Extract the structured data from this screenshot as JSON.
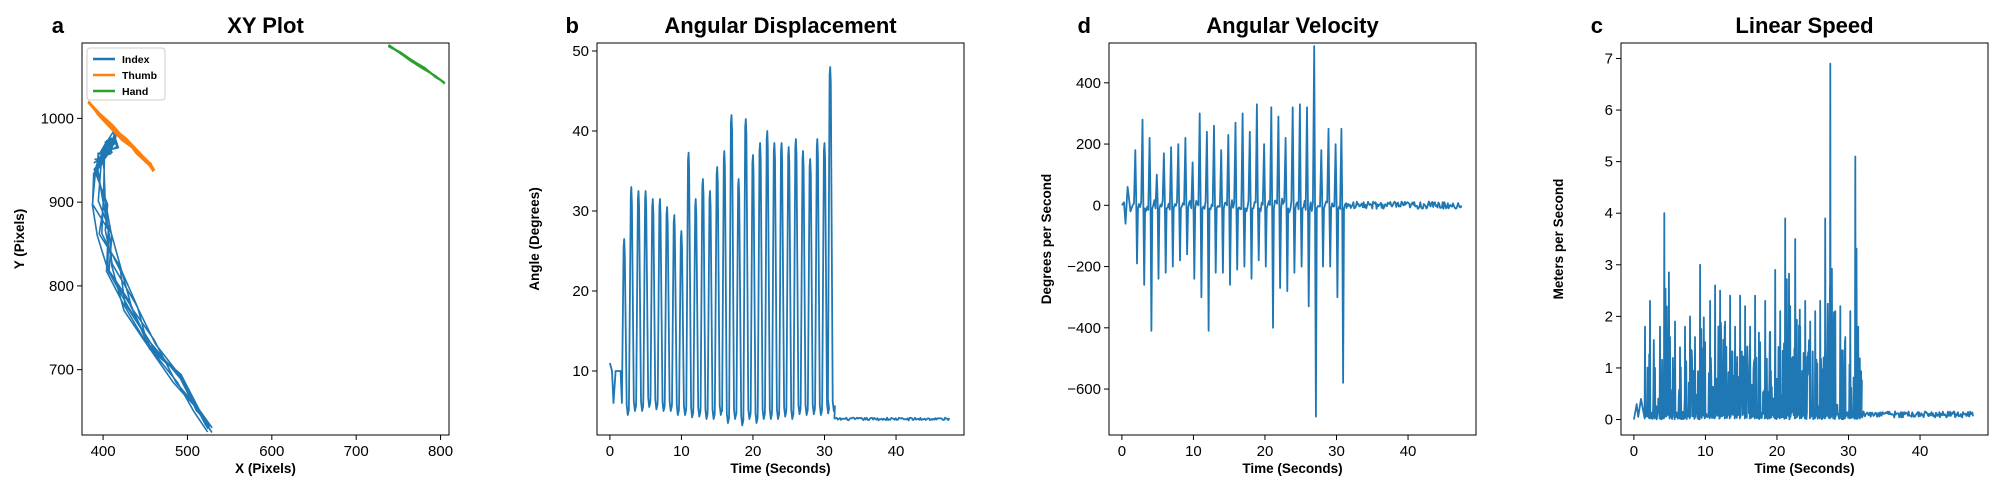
{
  "chart_data": [
    {
      "letter": "a",
      "type": "line",
      "title": "XY Plot",
      "xlabel": "X (Pixels)",
      "ylabel": "Y (Pixels)",
      "xlim": [
        375,
        810
      ],
      "ylim": [
        622,
        1090
      ],
      "xticks": [
        400,
        500,
        600,
        700,
        800
      ],
      "yticks": [
        700,
        800,
        900,
        1000
      ],
      "legend_position": "upper-left",
      "legend": [
        {
          "name": "Index",
          "color": "#1f77b4"
        },
        {
          "name": "Thumb",
          "color": "#ff7f0e"
        },
        {
          "name": "Hand",
          "color": "#2ca02c"
        }
      ],
      "series": [
        {
          "name": "Index",
          "color": "#1f77b4",
          "style": "bundle",
          "x": [
            392,
            398,
            404,
            410,
            408,
            402,
            398,
            398,
            402,
            412,
            432,
            458,
            488,
            512,
            526
          ],
          "y": [
            946,
            952,
            960,
            970,
            978,
            962,
            940,
            900,
            862,
            820,
            775,
            730,
            690,
            655,
            630
          ],
          "spread": 22
        },
        {
          "name": "Thumb",
          "color": "#ff7f0e",
          "style": "bundle",
          "x": [
            383,
            395,
            410,
            425,
            440,
            455,
            460
          ],
          "y": [
            1020,
            1005,
            990,
            975,
            960,
            945,
            938
          ],
          "spread": 6
        },
        {
          "name": "Hand",
          "color": "#2ca02c",
          "style": "bundle",
          "x": [
            738,
            752,
            766,
            780,
            794,
            805
          ],
          "y": [
            1087,
            1078,
            1068,
            1060,
            1050,
            1042
          ],
          "spread": 4
        }
      ]
    },
    {
      "letter": "b",
      "type": "line",
      "title": "Angular Displacement",
      "xlabel": "Time (Seconds)",
      "ylabel": "Angle (Degrees)",
      "xlim": [
        -1.8,
        49.5
      ],
      "ylim": [
        2,
        51
      ],
      "xticks": [
        0,
        10,
        20,
        30,
        40
      ],
      "yticks": [
        10,
        20,
        30,
        40,
        50
      ],
      "series": [
        {
          "name": "",
          "color": "#1f77b4",
          "style": "oscillation",
          "lead": [
            [
              0,
              11
            ],
            [
              0.3,
              10
            ],
            [
              0.5,
              6
            ],
            [
              0.8,
              10
            ],
            [
              1.5,
              10
            ]
          ],
          "peak_times": [
            2.0,
            3.0,
            4.0,
            5.0,
            6.0,
            7.0,
            8.0,
            9.0,
            10.0,
            11.0,
            12.0,
            13.0,
            14.0,
            15.0,
            16.0,
            17.0,
            18.0,
            19.0,
            20.0,
            21.0,
            22.0,
            23.0,
            24.0,
            25.0,
            26.0,
            27.0,
            28.0,
            29.0,
            30.0,
            30.8
          ],
          "peaks": [
            26.5,
            33,
            32.5,
            32.5,
            31.5,
            31.5,
            30.5,
            29.5,
            27.5,
            37.3,
            31.5,
            34,
            32.5,
            35.5,
            37.5,
            42,
            34,
            41.5,
            37,
            38.5,
            40,
            38.5,
            38.5,
            38,
            39,
            37.5,
            36.5,
            39,
            38.5,
            48
          ],
          "troughs": [
            4.5,
            5,
            5,
            5.5,
            5.2,
            5,
            5,
            4.5,
            4.5,
            4.2,
            4.3,
            4,
            4,
            4.5,
            3.5,
            4,
            3.2,
            4,
            3.5,
            4,
            4,
            4,
            4.3,
            4,
            4.6,
            4.5,
            4.6,
            4.5,
            4.7,
            5
          ],
          "tail": {
            "start": 31.4,
            "end": 47.5,
            "level": 4
          }
        }
      ]
    },
    {
      "letter": "d",
      "type": "line",
      "title": "Angular Velocity",
      "xlabel": "Time (Seconds)",
      "ylabel": "Degrees per Second",
      "xlim": [
        -1.8,
        49.5
      ],
      "ylim": [
        -750,
        530
      ],
      "xticks": [
        0,
        10,
        20,
        30,
        40
      ],
      "yticks": [
        -600,
        -400,
        -200,
        0,
        200,
        400
      ],
      "series": [
        {
          "name": "",
          "color": "#1f77b4",
          "style": "spikes",
          "lead": [
            [
              0,
              0
            ],
            [
              0.3,
              10
            ],
            [
              0.5,
              -60
            ],
            [
              0.8,
              60
            ],
            [
              1.2,
              -20
            ],
            [
              1.5,
              0
            ]
          ],
          "spike_times": [
            2.0,
            3.0,
            4.0,
            5.0,
            6.0,
            7.0,
            8.0,
            9.0,
            10.0,
            11.0,
            12.0,
            13.0,
            14.0,
            15.0,
            16.0,
            17.0,
            18.0,
            19.0,
            20.0,
            21.0,
            22.0,
            23.0,
            24.0,
            25.0,
            26.0,
            27.0,
            28.0,
            29.0,
            30.0,
            30.8
          ],
          "pos": [
            180,
            280,
            220,
            100,
            170,
            190,
            200,
            220,
            140,
            300,
            240,
            260,
            180,
            230,
            270,
            300,
            240,
            330,
            200,
            320,
            290,
            220,
            320,
            330,
            320,
            520,
            180,
            250,
            200,
            250
          ],
          "neg": [
            -190,
            -260,
            -410,
            -240,
            -220,
            -200,
            -180,
            -160,
            -240,
            -300,
            -410,
            -220,
            -220,
            -260,
            -210,
            -200,
            -240,
            -180,
            -200,
            -400,
            -270,
            -280,
            -220,
            -200,
            -330,
            -690,
            -200,
            -200,
            -300,
            -580
          ],
          "tail": {
            "start": 31.4,
            "end": 47.5,
            "level": 0
          }
        }
      ]
    },
    {
      "letter": "c",
      "type": "line",
      "title": "Linear Speed",
      "xlabel": "Time (Seconds)",
      "ylabel": "Meters per Second",
      "xlim": [
        -1.8,
        49.5
      ],
      "ylim": [
        -0.3,
        7.3
      ],
      "xticks": [
        0,
        10,
        20,
        30,
        40
      ],
      "yticks": [
        0,
        1,
        2,
        3,
        4,
        5,
        6,
        7
      ],
      "series": [
        {
          "name": "",
          "color": "#1f77b4",
          "style": "noisy-speed",
          "lead": [
            [
              0,
              0
            ],
            [
              0.4,
              0.3
            ],
            [
              0.6,
              0.05
            ],
            [
              1.0,
              0.4
            ],
            [
              1.4,
              0.1
            ]
          ],
          "pulse_times": [
            1.5,
            2.2,
            2.9,
            3.6,
            4.2,
            5.0,
            5.7,
            6.4,
            7.1,
            7.8,
            8.5,
            9.2,
            9.9,
            10.6,
            11.3,
            12.0,
            12.7,
            13.4,
            14.1,
            14.8,
            15.5,
            16.2,
            16.9,
            17.6,
            18.3,
            19.0,
            19.7,
            20.4,
            21.1,
            21.8,
            22.5,
            23.2,
            23.9,
            24.6,
            25.3,
            26.0,
            26.7,
            27.4,
            28.1,
            28.8,
            29.5,
            30.2,
            30.9,
            31.3
          ],
          "pulse_peaks": [
            1.8,
            2.3,
            1.0,
            1.8,
            4.0,
            1.6,
            1.9,
            1.4,
            1.8,
            2.0,
            1.6,
            3.0,
            1.5,
            2.3,
            2.6,
            2.5,
            1.9,
            2.4,
            1.8,
            2.4,
            2.2,
            1.8,
            2.4,
            1.5,
            2.3,
            1.7,
            2.9,
            2.1,
            3.9,
            2.2,
            3.5,
            1.8,
            2.3,
            1.9,
            2.1,
            2.3,
            3.9,
            6.9,
            2.1,
            2.2,
            1.6,
            2.1,
            5.1,
            1.8
          ],
          "tail": {
            "start": 31.6,
            "end": 47.5,
            "level": 0.04
          }
        }
      ]
    }
  ]
}
